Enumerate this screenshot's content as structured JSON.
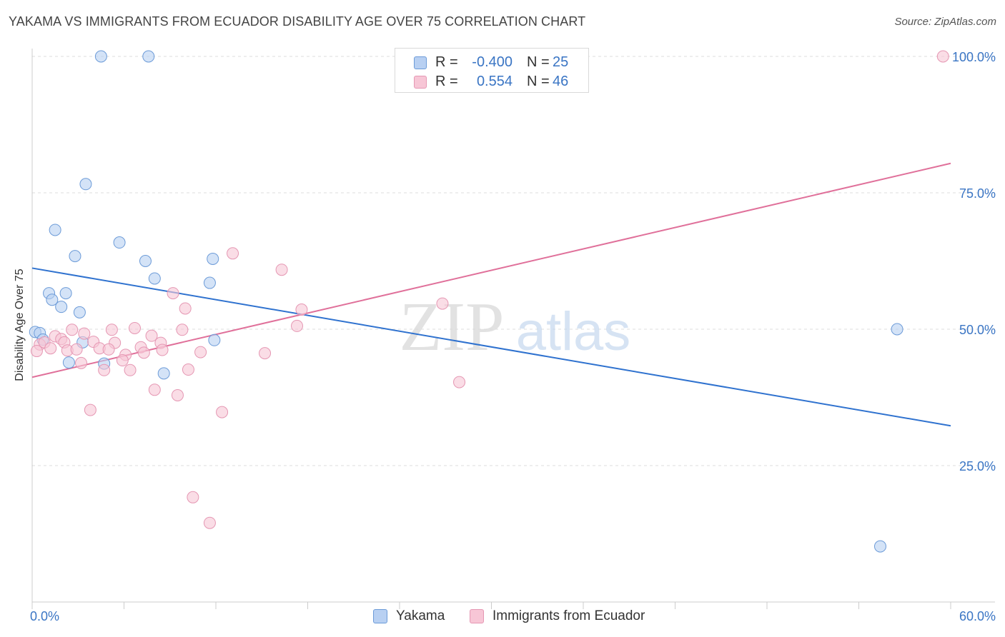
{
  "title": "YAKAMA VS IMMIGRANTS FROM ECUADOR DISABILITY AGE OVER 75 CORRELATION CHART",
  "source": "Source: ZipAtlas.com",
  "watermark": {
    "zip": "ZIP",
    "atlas": "atlas"
  },
  "colors": {
    "yakama_fill": "#b8d0f2",
    "yakama_stroke": "#6c9bd8",
    "yakama_line": "#2f72cf",
    "ecuador_fill": "#f7c6d6",
    "ecuador_stroke": "#e597b3",
    "ecuador_line": "#e0709a",
    "value_text": "#3a75c4",
    "grid": "#dcdcdc"
  },
  "legend_top": {
    "rows": [
      {
        "r_label": "R =",
        "r_value": "-0.400",
        "n_label": "N =",
        "n_value": "25"
      },
      {
        "r_label": "R =",
        "r_value": "0.554",
        "n_label": "N =",
        "n_value": "46"
      }
    ]
  },
  "legend_bottom": {
    "items": [
      "Yakama",
      "Immigrants from Ecuador"
    ]
  },
  "chart_data": {
    "type": "scatter",
    "title": "YAKAMA VS IMMIGRANTS FROM ECUADOR DISABILITY AGE OVER 75 CORRELATION CHART",
    "xlabel": "",
    "ylabel": "Disability Age Over 75",
    "xlim": [
      0,
      60
    ],
    "ylim": [
      0,
      104
    ],
    "x_tick_labels": [
      "0.0%",
      "60.0%"
    ],
    "y_ticks": [
      25,
      50,
      75,
      100
    ],
    "y_tick_labels": [
      "25.0%",
      "50.0%",
      "75.0%",
      "100.0%"
    ],
    "grid": true,
    "legend": "bottom",
    "series": [
      {
        "name": "Yakama",
        "r": -0.4,
        "n": 25,
        "trend": {
          "x": [
            0,
            60
          ],
          "y": [
            61.2,
            32.3
          ]
        },
        "points": [
          {
            "x": 4.5,
            "y": 100
          },
          {
            "x": 7.6,
            "y": 100
          },
          {
            "x": 3.5,
            "y": 76.6
          },
          {
            "x": 1.5,
            "y": 68.2
          },
          {
            "x": 5.7,
            "y": 65.9
          },
          {
            "x": 2.8,
            "y": 63.4
          },
          {
            "x": 7.4,
            "y": 62.5
          },
          {
            "x": 11.8,
            "y": 62.9
          },
          {
            "x": 8.0,
            "y": 59.3
          },
          {
            "x": 11.6,
            "y": 58.5
          },
          {
            "x": 1.1,
            "y": 56.6
          },
          {
            "x": 2.2,
            "y": 56.6
          },
          {
            "x": 1.3,
            "y": 55.4
          },
          {
            "x": 1.9,
            "y": 54.1
          },
          {
            "x": 3.1,
            "y": 53.1
          },
          {
            "x": 0.2,
            "y": 49.5
          },
          {
            "x": 0.5,
            "y": 49.3
          },
          {
            "x": 0.7,
            "y": 48.1
          },
          {
            "x": 3.3,
            "y": 47.6
          },
          {
            "x": 11.9,
            "y": 48.0
          },
          {
            "x": 2.4,
            "y": 43.9
          },
          {
            "x": 4.7,
            "y": 43.7
          },
          {
            "x": 8.6,
            "y": 41.9
          },
          {
            "x": 56.5,
            "y": 50.0
          },
          {
            "x": 55.4,
            "y": 10.2
          }
        ]
      },
      {
        "name": "Immigrants from Ecuador",
        "r": 0.554,
        "n": 46,
        "trend": {
          "x": [
            0,
            60
          ],
          "y": [
            41.2,
            80.4
          ]
        },
        "points": [
          {
            "x": 59.5,
            "y": 100
          },
          {
            "x": 13.1,
            "y": 63.9
          },
          {
            "x": 16.3,
            "y": 60.9
          },
          {
            "x": 9.2,
            "y": 56.6
          },
          {
            "x": 26.8,
            "y": 54.7
          },
          {
            "x": 10.0,
            "y": 53.8
          },
          {
            "x": 17.6,
            "y": 53.6
          },
          {
            "x": 17.3,
            "y": 50.6
          },
          {
            "x": 2.6,
            "y": 49.9
          },
          {
            "x": 5.2,
            "y": 49.9
          },
          {
            "x": 6.7,
            "y": 50.2
          },
          {
            "x": 9.8,
            "y": 49.9
          },
          {
            "x": 3.4,
            "y": 49.2
          },
          {
            "x": 7.8,
            "y": 48.8
          },
          {
            "x": 1.5,
            "y": 48.7
          },
          {
            "x": 1.9,
            "y": 48.2
          },
          {
            "x": 2.1,
            "y": 47.6
          },
          {
            "x": 4.0,
            "y": 47.7
          },
          {
            "x": 5.4,
            "y": 47.5
          },
          {
            "x": 0.5,
            "y": 47.2
          },
          {
            "x": 0.8,
            "y": 47.6
          },
          {
            "x": 1.2,
            "y": 46.5
          },
          {
            "x": 4.4,
            "y": 46.5
          },
          {
            "x": 5.0,
            "y": 46.3
          },
          {
            "x": 7.1,
            "y": 46.7
          },
          {
            "x": 8.4,
            "y": 47.5
          },
          {
            "x": 2.3,
            "y": 46.1
          },
          {
            "x": 2.9,
            "y": 46.3
          },
          {
            "x": 8.5,
            "y": 46.2
          },
          {
            "x": 0.3,
            "y": 46.0
          },
          {
            "x": 11.0,
            "y": 45.8
          },
          {
            "x": 7.3,
            "y": 45.7
          },
          {
            "x": 6.1,
            "y": 45.3
          },
          {
            "x": 15.2,
            "y": 45.6
          },
          {
            "x": 5.9,
            "y": 44.3
          },
          {
            "x": 3.2,
            "y": 43.8
          },
          {
            "x": 4.7,
            "y": 42.5
          },
          {
            "x": 6.4,
            "y": 42.5
          },
          {
            "x": 10.2,
            "y": 42.6
          },
          {
            "x": 27.9,
            "y": 40.3
          },
          {
            "x": 8.0,
            "y": 38.9
          },
          {
            "x": 9.5,
            "y": 37.9
          },
          {
            "x": 3.8,
            "y": 35.2
          },
          {
            "x": 12.4,
            "y": 34.8
          },
          {
            "x": 10.5,
            "y": 19.2
          },
          {
            "x": 11.6,
            "y": 14.5
          }
        ]
      }
    ]
  }
}
